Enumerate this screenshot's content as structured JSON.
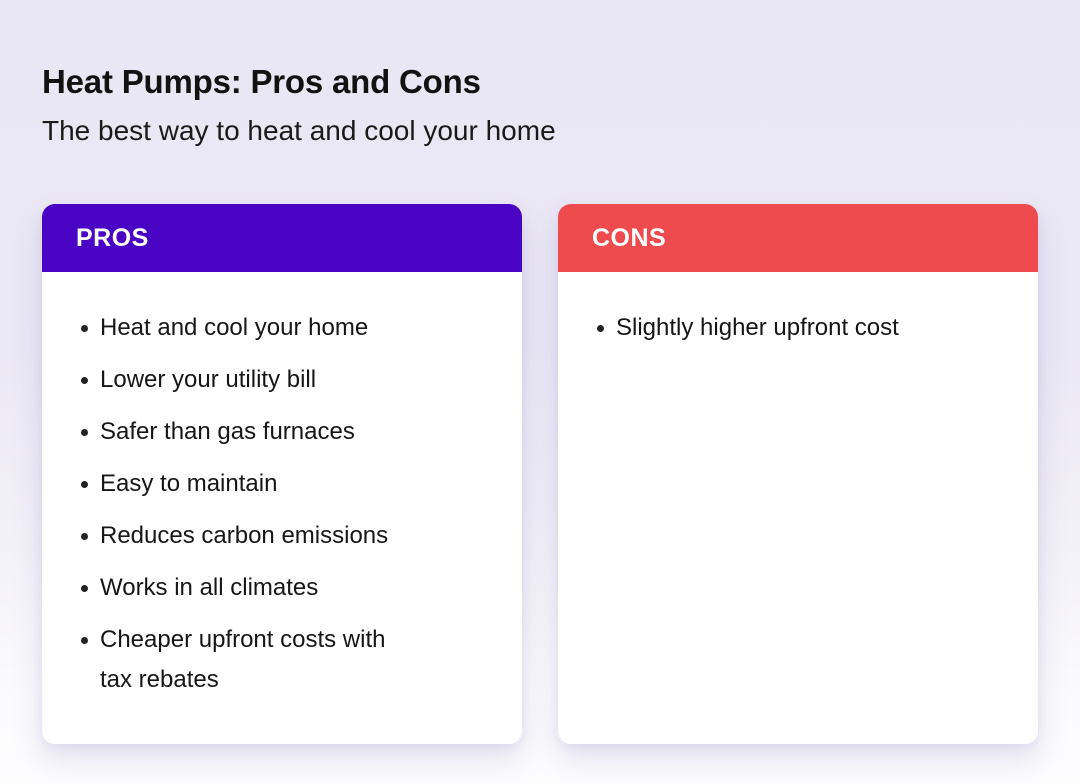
{
  "page": {
    "title": "Heat Pumps: Pros and Cons",
    "subtitle": "The best way to heat and cool your home"
  },
  "cards": [
    {
      "id": "pros",
      "header": "PROS",
      "header_color": "#4A04C4",
      "items": [
        "Heat and cool your home",
        "Lower your utility bill",
        "Safer than gas furnaces",
        "Easy to maintain",
        "Reduces carbon emissions",
        "Works in all climates",
        "Cheaper upfront costs with tax rebates"
      ]
    },
    {
      "id": "cons",
      "header": "CONS",
      "header_color": "#EE4B4E",
      "items": [
        "Slightly higher upfront cost"
      ]
    }
  ],
  "colors": {
    "background_top": "#EAE7F4",
    "background_bottom": "#FDFDFE",
    "card_body": "#FFFFFF",
    "header_text": "#FFFFFF",
    "body_text": "#161616"
  }
}
